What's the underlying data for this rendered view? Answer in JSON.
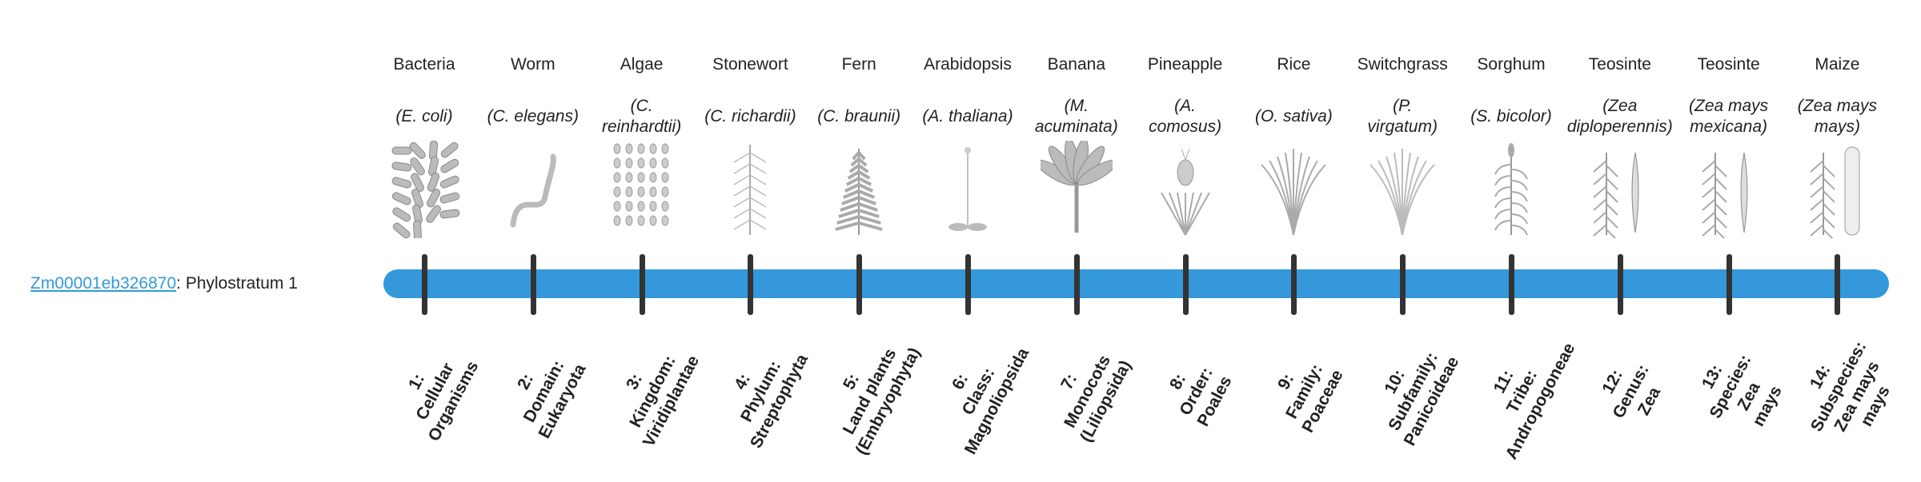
{
  "gene": {
    "id": "Zm00001eb326870",
    "suffix": ": Phylostratum 1"
  },
  "colors": {
    "bar": "#3498db",
    "tick": "#333333",
    "link": "#3498db",
    "illustration": "#9a9a9a"
  },
  "strata": [
    {
      "common": "Bacteria",
      "species": [
        "(E. coli)"
      ],
      "icon": "bacteria-rods-icon",
      "label": [
        "1:",
        "Cellular",
        "Organisms"
      ]
    },
    {
      "common": "Worm",
      "species": [
        "(C. elegans)"
      ],
      "icon": "worm-icon",
      "label": [
        "2:",
        "Domain:",
        "Eukaryota"
      ]
    },
    {
      "common": "Algae",
      "species": [
        "(C.",
        "reinhardtii)"
      ],
      "icon": "algae-cells-icon",
      "label": [
        "3:",
        "Kingdom:",
        "Viridiplantae"
      ]
    },
    {
      "common": "Stonewort",
      "species": [
        "(C. richardii)"
      ],
      "icon": "stonewort-icon",
      "label": [
        "4:",
        "Phylum:",
        "Streptophyta"
      ]
    },
    {
      "common": "Fern",
      "species": [
        "(C. braunii)"
      ],
      "icon": "fern-icon",
      "label": [
        "5:",
        "Land plants",
        "(Embryophyta)"
      ]
    },
    {
      "common": "Arabidopsis",
      "species": [
        "(A. thaliana)"
      ],
      "icon": "arabidopsis-icon",
      "label": [
        "6:",
        "Class:",
        "Magnoliopsida"
      ]
    },
    {
      "common": "Banana",
      "species": [
        "(M.",
        "acuminata)"
      ],
      "icon": "banana-plant-icon",
      "label": [
        "7:",
        "Monocots",
        "(Liliopsida)"
      ]
    },
    {
      "common": "Pineapple",
      "species": [
        "(A.",
        "comosus)"
      ],
      "icon": "pineapple-icon",
      "label": [
        "8:",
        "Order:",
        "Poales"
      ]
    },
    {
      "common": "Rice",
      "species": [
        "(O. sativa)"
      ],
      "icon": "rice-icon",
      "label": [
        "9:",
        "Family:",
        "Poaceae"
      ]
    },
    {
      "common": "Switchgrass",
      "species": [
        "(P.",
        "virgatum)"
      ],
      "icon": "switchgrass-icon",
      "label": [
        "10:",
        "Subfamily:",
        "Panicoideae"
      ]
    },
    {
      "common": "Sorghum",
      "species": [
        "(S. bicolor)"
      ],
      "icon": "sorghum-icon",
      "label": [
        "11:",
        "Tribe:",
        "Andropogoneae"
      ]
    },
    {
      "common": "Teosinte",
      "species": [
        "(Zea",
        "diploperennis)"
      ],
      "icon": "teosinte-icon",
      "label": [
        "12:",
        "Genus:",
        "Zea"
      ]
    },
    {
      "common": "Teosinte",
      "species": [
        "(Zea mays",
        "mexicana)"
      ],
      "icon": "teosinte-icon",
      "label": [
        "13:",
        "Species:",
        "Zea",
        "mays"
      ]
    },
    {
      "common": "Maize",
      "species": [
        "(Zea mays",
        "mays)"
      ],
      "icon": "maize-icon",
      "label": [
        "14:",
        "Subspecies:",
        "Zea mays",
        "mays"
      ]
    }
  ]
}
